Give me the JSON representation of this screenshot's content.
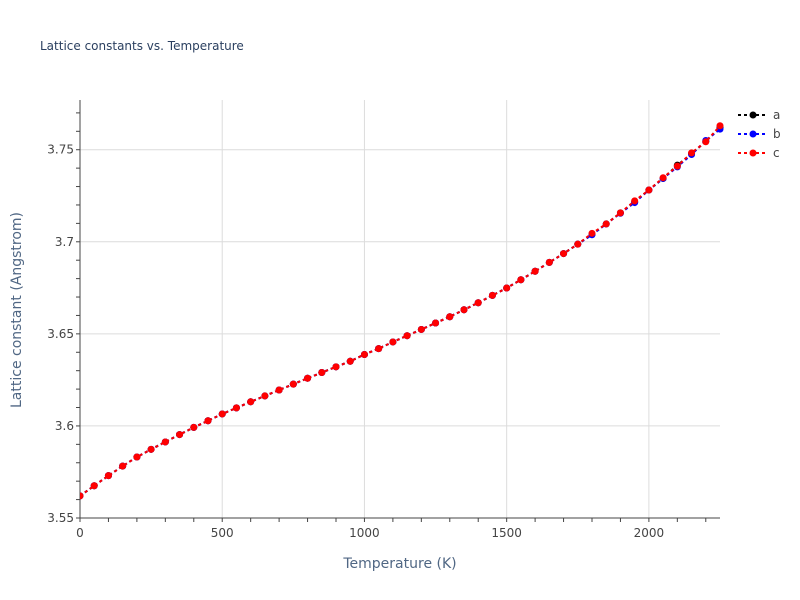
{
  "chart_data": {
    "type": "line",
    "title": "Lattice constants vs. Temperature",
    "xlabel": "Temperature (K)",
    "ylabel": "Lattice constant (Angstrom)",
    "xlim": [
      0,
      2250
    ],
    "ylim": [
      3.55,
      3.777
    ],
    "x_ticks": [
      0,
      500,
      1000,
      1500,
      2000
    ],
    "x_tick_labels": [
      "0",
      "500",
      "1000",
      "1500",
      "2000"
    ],
    "y_ticks": [
      3.55,
      3.6,
      3.65,
      3.7,
      3.75
    ],
    "y_tick_labels": [
      "3.55",
      "3.6",
      "3.65",
      "3.7",
      "3.75"
    ],
    "grid": true,
    "legend_position": "right",
    "x": [
      0,
      50,
      100,
      150,
      200,
      250,
      300,
      350,
      400,
      450,
      500,
      550,
      600,
      650,
      700,
      750,
      800,
      850,
      900,
      950,
      1000,
      1050,
      1100,
      1150,
      1200,
      1250,
      1300,
      1350,
      1400,
      1450,
      1500,
      1550,
      1600,
      1650,
      1700,
      1750,
      1800,
      1850,
      1900,
      1950,
      2000,
      2050,
      2100,
      2150,
      2200,
      2250
    ],
    "series": [
      {
        "name": "a",
        "color": "#000000",
        "values": [
          3.562,
          3.5675,
          3.573,
          3.5782,
          3.5831,
          3.5873,
          3.5913,
          3.5953,
          3.5992,
          3.6028,
          3.6065,
          3.6098,
          3.6131,
          3.6163,
          3.6195,
          3.6227,
          3.6259,
          3.629,
          3.6321,
          3.6351,
          3.6388,
          3.642,
          3.6456,
          3.649,
          3.6524,
          3.6559,
          3.6593,
          3.6631,
          3.6669,
          3.6709,
          3.6749,
          3.6794,
          3.684,
          3.6888,
          3.6936,
          3.6987,
          3.704,
          3.7097,
          3.7157,
          3.7217,
          3.7281,
          3.7344,
          3.7416,
          3.7478,
          3.7545,
          3.762
        ]
      },
      {
        "name": "b",
        "color": "#0000ff",
        "values": [
          3.562,
          3.5675,
          3.573,
          3.5782,
          3.5831,
          3.5873,
          3.5913,
          3.5953,
          3.5992,
          3.6028,
          3.6065,
          3.6098,
          3.6131,
          3.6163,
          3.6195,
          3.6227,
          3.6259,
          3.629,
          3.6321,
          3.6351,
          3.6388,
          3.642,
          3.6456,
          3.649,
          3.6524,
          3.6559,
          3.6593,
          3.6631,
          3.6669,
          3.6709,
          3.6749,
          3.6794,
          3.684,
          3.6888,
          3.6936,
          3.6987,
          3.7038,
          3.7097,
          3.7155,
          3.7213,
          3.7281,
          3.7344,
          3.7407,
          3.7474,
          3.755,
          3.7612
        ]
      },
      {
        "name": "c",
        "color": "#ff0000",
        "values": [
          3.562,
          3.5675,
          3.573,
          3.5782,
          3.5831,
          3.5873,
          3.5913,
          3.5953,
          3.5992,
          3.6028,
          3.6065,
          3.6098,
          3.6131,
          3.6163,
          3.6195,
          3.6227,
          3.6259,
          3.629,
          3.6321,
          3.6351,
          3.6388,
          3.642,
          3.6456,
          3.649,
          3.6524,
          3.6559,
          3.6593,
          3.6631,
          3.6669,
          3.6709,
          3.6749,
          3.6794,
          3.684,
          3.6888,
          3.6936,
          3.6987,
          3.7046,
          3.7097,
          3.7157,
          3.7222,
          3.7281,
          3.7348,
          3.7411,
          3.7483,
          3.7543,
          3.763
        ]
      }
    ]
  }
}
